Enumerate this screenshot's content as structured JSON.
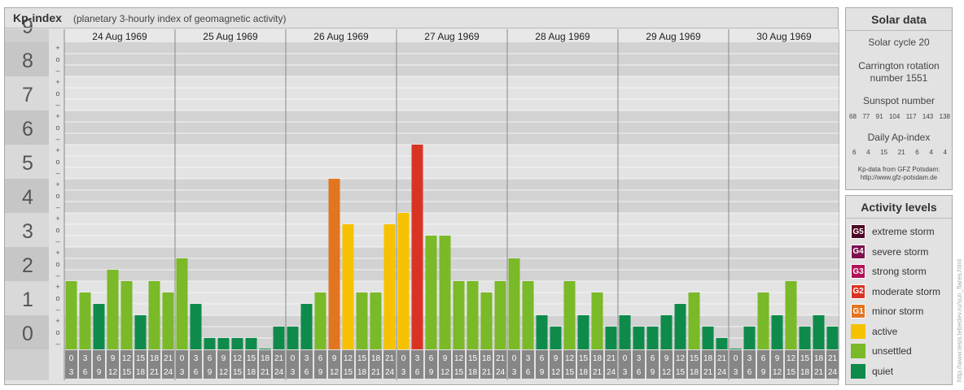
{
  "header": {
    "title": "Kp-index",
    "subtitle": "(planetary 3-hourly index of geomagnetic activity)"
  },
  "chart_data": {
    "type": "bar",
    "ylim": [
      0,
      9
    ],
    "y_major_labels": [
      "0",
      "1",
      "2",
      "3",
      "4",
      "5",
      "6",
      "7",
      "8",
      "9"
    ],
    "y_minor_labels": [
      "–",
      "o",
      "+"
    ],
    "days": [
      "24 Aug 1969",
      "25 Aug 1969",
      "26 Aug 1969",
      "27 Aug 1969",
      "28 Aug 1969",
      "29 Aug 1969",
      "30 Aug 1969"
    ],
    "interval_start": [
      "0",
      "3",
      "6",
      "9",
      "12",
      "15",
      "18",
      "21"
    ],
    "interval_end": [
      "3",
      "6",
      "9",
      "12",
      "15",
      "18",
      "21",
      "24"
    ],
    "values": [
      2.0,
      1.667,
      1.333,
      2.333,
      2.0,
      1.0,
      2.0,
      1.667,
      2.667,
      1.333,
      0.333,
      0.333,
      0.333,
      0.333,
      0.0,
      0.667,
      0.667,
      1.333,
      1.667,
      5.0,
      3.667,
      1.667,
      1.667,
      3.667,
      4.0,
      6.0,
      3.333,
      3.333,
      2.0,
      2.0,
      1.667,
      2.0,
      2.667,
      2.0,
      1.0,
      0.667,
      2.0,
      1.0,
      1.667,
      0.667,
      1.0,
      0.667,
      0.667,
      1.0,
      1.333,
      1.667,
      0.667,
      0.333,
      0.0,
      0.667,
      1.667,
      1.0,
      2.0,
      0.667,
      1.0,
      0.667
    ],
    "level_colors": {
      "quiet": "#0e8b4a",
      "unsettled": "#7ab927",
      "active": "#f6c100",
      "G1": "#e2751f",
      "G2": "#d93423",
      "G3": "#b0135a",
      "G4": "#7d1150",
      "G5": "#4e0726"
    }
  },
  "solar": {
    "title": "Solar data",
    "cycle": "Solar cycle 20",
    "carrington_line1": "Carrington rotation",
    "carrington_line2": "number 1551",
    "sunspot_title": "Sunspot number",
    "sunspot_values": [
      "68",
      "77",
      "91",
      "104",
      "117",
      "143",
      "138"
    ],
    "ap_title": "Daily Ap-index",
    "ap_values": [
      "6",
      "4",
      "15",
      "21",
      "6",
      "4",
      "4"
    ],
    "source_line1": "Kp-data from GFZ Potsdam:",
    "source_line2": "http://www.gfz-potsdam.de"
  },
  "activity": {
    "title": "Activity levels",
    "items": [
      {
        "code": "G5",
        "label": "extreme storm",
        "color": "#4e0726"
      },
      {
        "code": "G4",
        "label": "severe storm",
        "color": "#7d1150"
      },
      {
        "code": "G3",
        "label": "strong storm",
        "color": "#b0135a"
      },
      {
        "code": "G2",
        "label": "moderate storm",
        "color": "#d93423"
      },
      {
        "code": "G1",
        "label": "minor storm",
        "color": "#e2751f"
      },
      {
        "code": "",
        "label": "active",
        "color": "#f6c100"
      },
      {
        "code": "",
        "label": "unsettled",
        "color": "#7ab927"
      },
      {
        "code": "",
        "label": "quiet",
        "color": "#0e8b4a"
      }
    ]
  },
  "watermark": "http://www.tesis.lebedev.ru/sun_flares.html"
}
